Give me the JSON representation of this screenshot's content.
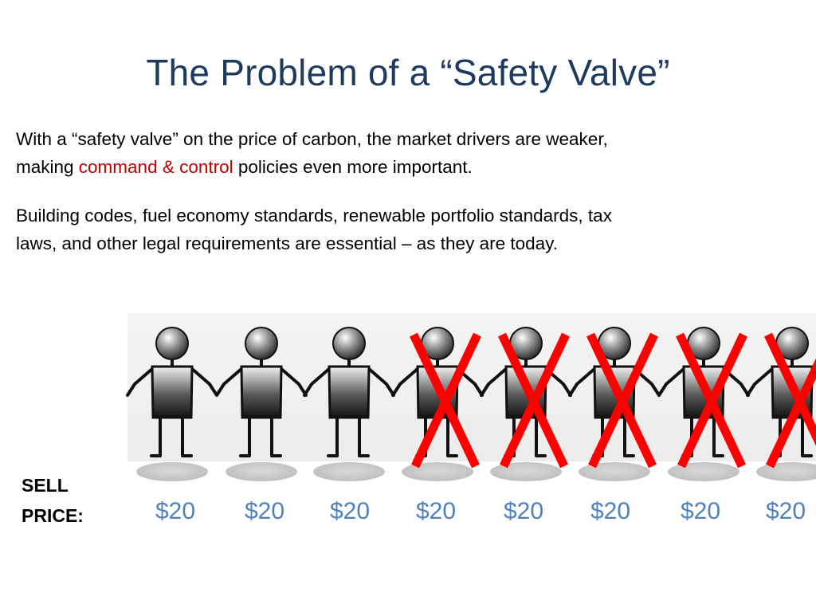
{
  "slide": {
    "title": "The Problem of a “Safety Valve”",
    "paragraph1": {
      "line1": "With a “safety valve” on the price of carbon, the market drivers are weaker,",
      "line2_before": "making ",
      "line2_highlight": "command & control",
      "line2_after": " policies even more important."
    },
    "paragraph2": {
      "line1": "Building codes, fuel economy standards, renewable portfolio standards, tax",
      "line2": "laws, and other legal requirements are essential – as they are today."
    },
    "sell_label_line1": "SELL",
    "sell_label_line2": "PRICE:",
    "prices": [
      "$20",
      "$20",
      "$20",
      "$20",
      "$20",
      "$20",
      "$20",
      "$20"
    ],
    "figures_total": 8,
    "figures_crossed": 5,
    "colors": {
      "title": "#1f3a5f",
      "highlight": "#c00000",
      "price": "#4f81bd",
      "cross": "#ff0000"
    }
  }
}
